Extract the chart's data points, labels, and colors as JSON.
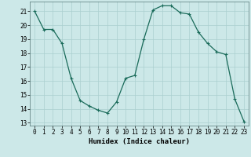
{
  "x": [
    0,
    1,
    2,
    3,
    4,
    5,
    6,
    7,
    8,
    9,
    10,
    11,
    12,
    13,
    14,
    15,
    16,
    17,
    18,
    19,
    20,
    21,
    22,
    23
  ],
  "y": [
    21,
    19.7,
    19.7,
    18.7,
    16.2,
    14.6,
    14.2,
    13.9,
    13.7,
    14.5,
    16.2,
    16.4,
    19.0,
    21.1,
    21.4,
    21.4,
    20.9,
    20.8,
    19.5,
    18.7,
    18.1,
    17.9,
    14.7,
    13.1
  ],
  "line_color": "#1a6b5a",
  "marker": "+",
  "marker_size": 3,
  "bg_color": "#cce8e8",
  "grid_color": "#aacfcf",
  "xlabel": "Humidex (Indice chaleur)",
  "ylim": [
    12.8,
    21.7
  ],
  "xlim": [
    -0.5,
    23.5
  ],
  "yticks": [
    13,
    14,
    15,
    16,
    17,
    18,
    19,
    20,
    21
  ],
  "xticks": [
    0,
    1,
    2,
    3,
    4,
    5,
    6,
    7,
    8,
    9,
    10,
    11,
    12,
    13,
    14,
    15,
    16,
    17,
    18,
    19,
    20,
    21,
    22,
    23
  ],
  "tick_fontsize": 5.5,
  "xlabel_fontsize": 6.5,
  "linewidth": 0.9,
  "marker_linewidth": 0.8
}
